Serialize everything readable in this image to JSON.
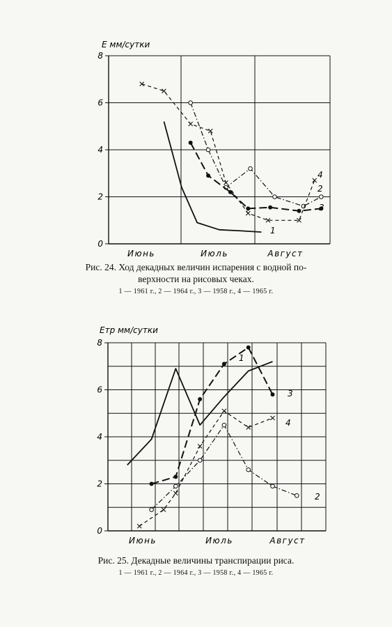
{
  "figures": [
    {
      "ylabel": "E мм/сутки",
      "caption_line1": "Рис. 24. Ход декадных величин испарения с водной по-",
      "caption_line2": "верхности на рисовых чеках.",
      "legend": "1 — 1961 г., 2 — 1964 г., 3 — 1958 г., 4 — 1965 г."
    },
    {
      "ylabel": "Eтр мм/сутки",
      "caption_line1": "Рис. 25. Декадные величины транспирации риса.",
      "legend": "1 — 1961 г., 2 — 1964 г., 3 — 1958 г., 4 — 1965 г."
    }
  ],
  "chart_data": [
    {
      "type": "line",
      "ylabel": "E мм/сутки",
      "xlabel": "",
      "ylim": [
        0,
        8
      ],
      "yticks": [
        "0",
        "2",
        "4",
        "6",
        "8"
      ],
      "months": [
        "Июнь",
        "Июль",
        "Август"
      ],
      "grid": true,
      "series": [
        {
          "name": "1",
          "style": "solid",
          "marker": "none",
          "x": [
            2.5,
            3.3,
            4,
            5,
            6,
            6.9
          ],
          "y": [
            5.2,
            2.4,
            0.9,
            0.6,
            0.55,
            0.5
          ]
        },
        {
          "name": "2",
          "style": "dashdot",
          "marker": "circle",
          "x": [
            3.7,
            4.5,
            5.3,
            6.4,
            7.5,
            8.8,
            9.6
          ],
          "y": [
            6.0,
            4.0,
            2.4,
            3.2,
            2.0,
            1.6,
            2.0
          ]
        },
        {
          "name": "3",
          "style": "dashed-bold",
          "marker": "dot",
          "x": [
            3.7,
            4.5,
            5.5,
            6.3,
            7.3,
            8.6,
            9.6
          ],
          "y": [
            4.3,
            2.9,
            2.2,
            1.5,
            1.55,
            1.4,
            1.5
          ]
        },
        {
          "name": "4",
          "style": "dashed",
          "marker": "cross",
          "x": [
            1.5,
            2.5,
            3.7,
            4.6,
            5.3,
            6.3,
            7.2,
            8.6,
            9.3
          ],
          "y": [
            6.8,
            6.5,
            5.1,
            4.8,
            2.6,
            1.3,
            1.0,
            1.0,
            2.7
          ]
        }
      ]
    },
    {
      "type": "line",
      "ylabel": "Eтр мм/сутки",
      "xlabel": "",
      "ylim": [
        0,
        8
      ],
      "yticks": [
        "0",
        "2",
        "4",
        "6",
        "8"
      ],
      "months": [
        "Июнь",
        "Июль",
        "Август"
      ],
      "grid": true,
      "series": [
        {
          "name": "1",
          "style": "solid",
          "marker": "none",
          "x": [
            0.8,
            1.8,
            2.8,
            3.8,
            4.8,
            5.8,
            6.8
          ],
          "y": [
            2.8,
            3.9,
            6.9,
            4.5,
            5.7,
            6.8,
            7.2
          ]
        },
        {
          "name": "2",
          "style": "dashdot",
          "marker": "circle",
          "x": [
            1.8,
            2.8,
            3.8,
            4.8,
            5.8,
            6.8,
            7.8
          ],
          "y": [
            0.9,
            1.9,
            3.0,
            4.5,
            2.6,
            1.9,
            1.5
          ]
        },
        {
          "name": "3",
          "style": "dashed-bold",
          "marker": "dot",
          "x": [
            1.8,
            2.8,
            3.8,
            4.8,
            5.8,
            6.8
          ],
          "y": [
            2.0,
            2.3,
            5.6,
            7.1,
            7.8,
            5.8
          ]
        },
        {
          "name": "4",
          "style": "dashed",
          "marker": "cross",
          "x": [
            1.3,
            2.3,
            2.8,
            3.8,
            4.8,
            5.8,
            6.8
          ],
          "y": [
            0.2,
            0.9,
            1.6,
            3.6,
            5.1,
            4.4,
            4.8
          ]
        }
      ]
    }
  ]
}
